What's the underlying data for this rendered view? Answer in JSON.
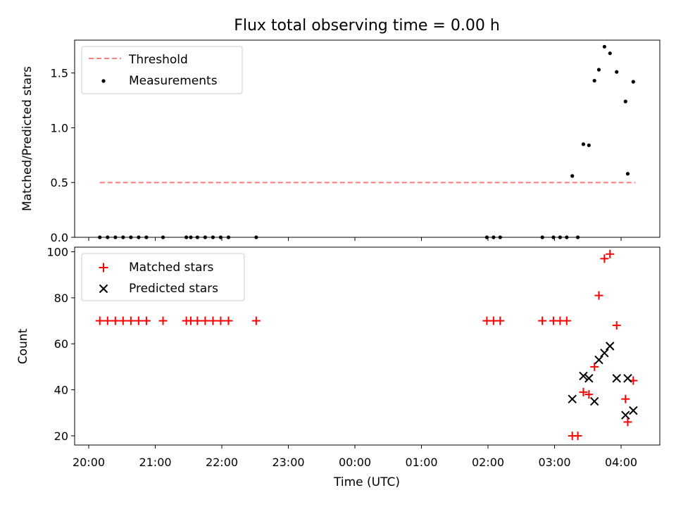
{
  "chart_data": [
    {
      "type": "scatter",
      "title": "Flux total observing time = 0.00 h",
      "ylabel": "Matched/Predicted stars",
      "xlabel": "",
      "ylim": [
        0,
        1.8
      ],
      "yticks": [
        {
          "value": 0.0,
          "label": "0.0"
        },
        {
          "value": 0.5,
          "label": "0.5"
        },
        {
          "value": 1.0,
          "label": "1.0"
        },
        {
          "value": 1.5,
          "label": "1.5"
        }
      ],
      "legend_position": "top-left",
      "threshold": {
        "name": "Threshold",
        "value": 0.5,
        "x_start": "20:10",
        "x_end": "04:13",
        "color": "#ff7f7f"
      },
      "series": [
        {
          "name": "Measurements",
          "marker": "dot",
          "color": "#000000",
          "points": [
            {
              "x": "20:10",
              "y": 0
            },
            {
              "x": "20:17",
              "y": 0
            },
            {
              "x": "20:24",
              "y": 0
            },
            {
              "x": "20:31",
              "y": 0
            },
            {
              "x": "20:38",
              "y": 0
            },
            {
              "x": "20:45",
              "y": 0
            },
            {
              "x": "20:52",
              "y": 0
            },
            {
              "x": "21:07",
              "y": 0
            },
            {
              "x": "21:28",
              "y": 0
            },
            {
              "x": "21:32",
              "y": 0
            },
            {
              "x": "21:38",
              "y": 0
            },
            {
              "x": "21:45",
              "y": 0
            },
            {
              "x": "21:52",
              "y": 0
            },
            {
              "x": "21:59",
              "y": 0
            },
            {
              "x": "22:06",
              "y": 0
            },
            {
              "x": "22:31",
              "y": 0
            },
            {
              "x": "01:59",
              "y": 0
            },
            {
              "x": "02:05",
              "y": 0
            },
            {
              "x": "02:11",
              "y": 0
            },
            {
              "x": "02:49",
              "y": 0
            },
            {
              "x": "02:59",
              "y": 0
            },
            {
              "x": "03:05",
              "y": 0
            },
            {
              "x": "03:11",
              "y": 0
            },
            {
              "x": "03:21",
              "y": 0
            },
            {
              "x": "03:16",
              "y": 0.56
            },
            {
              "x": "03:26",
              "y": 0.85
            },
            {
              "x": "03:31",
              "y": 0.84
            },
            {
              "x": "03:36",
              "y": 1.43
            },
            {
              "x": "03:40",
              "y": 1.53
            },
            {
              "x": "03:45",
              "y": 1.74
            },
            {
              "x": "03:50",
              "y": 1.68
            },
            {
              "x": "03:56",
              "y": 1.51
            },
            {
              "x": "04:04",
              "y": 1.24
            },
            {
              "x": "04:06",
              "y": 0.58
            },
            {
              "x": "04:11",
              "y": 1.42
            }
          ]
        }
      ]
    },
    {
      "type": "scatter",
      "title": "",
      "ylabel": "Count",
      "xlabel": "Time (UTC)",
      "ylim": [
        16,
        102
      ],
      "yticks": [
        {
          "value": 20,
          "label": "20"
        },
        {
          "value": 40,
          "label": "40"
        },
        {
          "value": 60,
          "label": "60"
        },
        {
          "value": 80,
          "label": "80"
        },
        {
          "value": 100,
          "label": "100"
        }
      ],
      "xticks": [
        "20:00",
        "21:00",
        "22:00",
        "23:00",
        "00:00",
        "01:00",
        "02:00",
        "03:00",
        "04:00"
      ],
      "legend_position": "top-left",
      "series": [
        {
          "name": "Matched stars",
          "marker": "plus",
          "color": "#ff0000",
          "points": [
            {
              "x": "20:10",
              "y": 70
            },
            {
              "x": "20:17",
              "y": 70
            },
            {
              "x": "20:24",
              "y": 70
            },
            {
              "x": "20:31",
              "y": 70
            },
            {
              "x": "20:38",
              "y": 70
            },
            {
              "x": "20:45",
              "y": 70
            },
            {
              "x": "20:52",
              "y": 70
            },
            {
              "x": "21:07",
              "y": 70
            },
            {
              "x": "21:28",
              "y": 70
            },
            {
              "x": "21:32",
              "y": 70
            },
            {
              "x": "21:38",
              "y": 70
            },
            {
              "x": "21:45",
              "y": 70
            },
            {
              "x": "21:52",
              "y": 70
            },
            {
              "x": "21:59",
              "y": 70
            },
            {
              "x": "22:06",
              "y": 70
            },
            {
              "x": "22:31",
              "y": 70
            },
            {
              "x": "01:59",
              "y": 70
            },
            {
              "x": "02:05",
              "y": 70
            },
            {
              "x": "02:11",
              "y": 70
            },
            {
              "x": "02:49",
              "y": 70
            },
            {
              "x": "02:59",
              "y": 70
            },
            {
              "x": "03:05",
              "y": 70
            },
            {
              "x": "03:11",
              "y": 70
            },
            {
              "x": "03:16",
              "y": 20
            },
            {
              "x": "03:21",
              "y": 20
            },
            {
              "x": "03:26",
              "y": 39
            },
            {
              "x": "03:31",
              "y": 38
            },
            {
              "x": "03:36",
              "y": 50
            },
            {
              "x": "03:40",
              "y": 81
            },
            {
              "x": "03:45",
              "y": 97
            },
            {
              "x": "03:50",
              "y": 99
            },
            {
              "x": "03:56",
              "y": 68
            },
            {
              "x": "04:04",
              "y": 36
            },
            {
              "x": "04:06",
              "y": 26
            },
            {
              "x": "04:11",
              "y": 44
            }
          ]
        },
        {
          "name": "Predicted stars",
          "marker": "x",
          "color": "#000000",
          "points": [
            {
              "x": "03:16",
              "y": 36
            },
            {
              "x": "03:26",
              "y": 46
            },
            {
              "x": "03:31",
              "y": 45
            },
            {
              "x": "03:36",
              "y": 35
            },
            {
              "x": "03:40",
              "y": 53
            },
            {
              "x": "03:45",
              "y": 56
            },
            {
              "x": "03:50",
              "y": 59
            },
            {
              "x": "03:56",
              "y": 45
            },
            {
              "x": "04:04",
              "y": 29
            },
            {
              "x": "04:06",
              "y": 45
            },
            {
              "x": "04:11",
              "y": 31
            }
          ]
        }
      ]
    }
  ]
}
